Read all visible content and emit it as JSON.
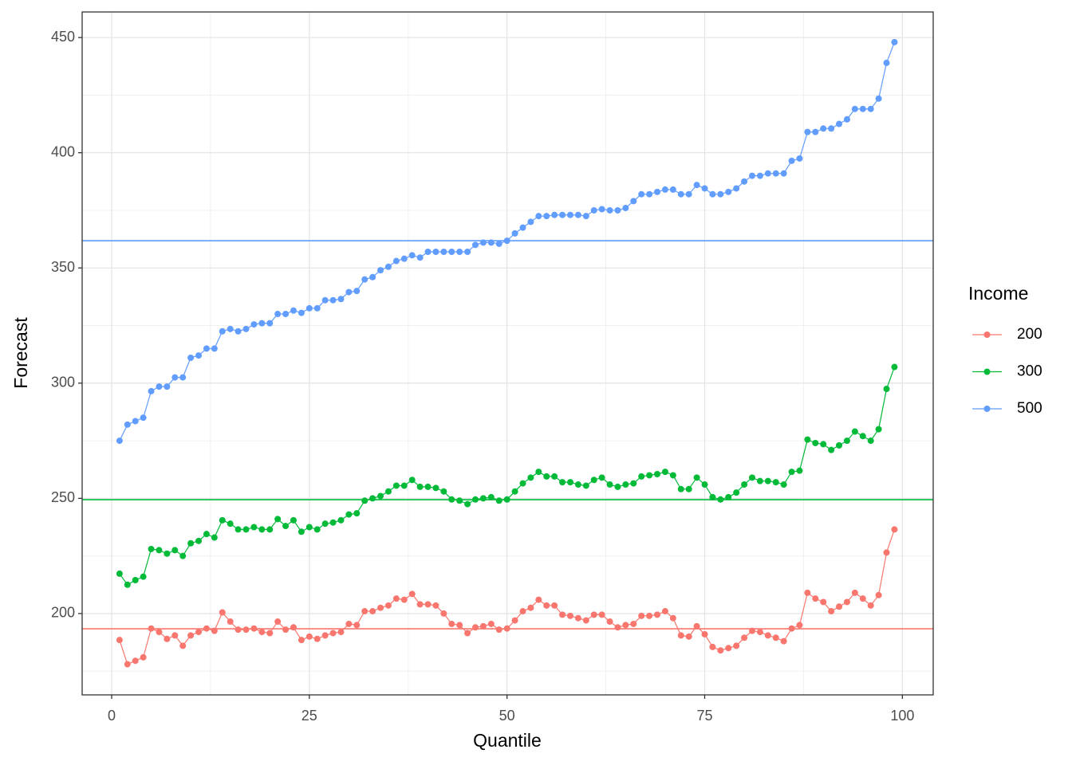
{
  "chart_data": {
    "type": "line",
    "x_label": "Quantile",
    "y_label": "Forecast",
    "x": [
      1,
      2,
      3,
      4,
      5,
      6,
      7,
      8,
      9,
      10,
      11,
      12,
      13,
      14,
      15,
      16,
      17,
      18,
      19,
      20,
      21,
      22,
      23,
      24,
      25,
      26,
      27,
      28,
      29,
      30,
      31,
      32,
      33,
      34,
      35,
      36,
      37,
      38,
      39,
      40,
      41,
      42,
      43,
      44,
      45,
      46,
      47,
      48,
      49,
      50,
      51,
      52,
      53,
      54,
      55,
      56,
      57,
      58,
      59,
      60,
      61,
      62,
      63,
      64,
      65,
      66,
      67,
      68,
      69,
      70,
      71,
      72,
      73,
      74,
      75,
      76,
      77,
      78,
      79,
      80,
      81,
      82,
      83,
      84,
      85,
      86,
      87,
      88,
      89,
      90,
      91,
      92,
      93,
      94,
      95,
      96,
      97,
      98,
      99
    ],
    "xlim": [
      -3.73,
      103.9
    ],
    "xticks": [
      0,
      25,
      50,
      75,
      100
    ],
    "ylim": [
      164.7,
      461.1
    ],
    "yticks": [
      200,
      250,
      300,
      350,
      400,
      450
    ],
    "grid": true,
    "legend_title": "Income",
    "legend_position": "right",
    "series": [
      {
        "name": "200",
        "color": "#F8766D",
        "hline": 193.4,
        "values": [
          188.5,
          178,
          179.5,
          181,
          193.5,
          192,
          189,
          190.5,
          186,
          190.5,
          192,
          193.5,
          192.5,
          200.5,
          196.5,
          193,
          193,
          193.5,
          192,
          191.5,
          196.5,
          193,
          194,
          188.5,
          190,
          189,
          190.5,
          191.5,
          192,
          195.5,
          195,
          201,
          201,
          202.5,
          203.5,
          206.5,
          206,
          208.5,
          204,
          204,
          203.5,
          200,
          195.5,
          195,
          191.5,
          194,
          194.5,
          195.5,
          193,
          193.5,
          197,
          201,
          202.5,
          206,
          203.5,
          203.5,
          199.5,
          199,
          198,
          197,
          199.5,
          199.5,
          196.5,
          194,
          195,
          195.5,
          199,
          199,
          199.5,
          201,
          198,
          190.5,
          190,
          194.5,
          191,
          185.5,
          184,
          185,
          186,
          189.5,
          192.5,
          192,
          190.5,
          189.5,
          188,
          193.5,
          195,
          209,
          206.5,
          205,
          201,
          203,
          205,
          209,
          206.5,
          203.5,
          208,
          226.5,
          236.5
        ]
      },
      {
        "name": "300",
        "color": "#00BA38",
        "hline": 249.4,
        "values": [
          217.3,
          212.5,
          214.5,
          216,
          228,
          227.5,
          226,
          227.5,
          225,
          230.5,
          231.5,
          234.5,
          233,
          240.5,
          239,
          236.5,
          236.5,
          237.5,
          236.5,
          236.5,
          241,
          238,
          240.5,
          235.5,
          237.5,
          236.5,
          239,
          239.5,
          240.5,
          243,
          243.5,
          249,
          250,
          251,
          253,
          255.5,
          255.5,
          258,
          255,
          255,
          254.5,
          253,
          249.5,
          249,
          247.5,
          249.5,
          250,
          250.5,
          249,
          249.5,
          253,
          256.5,
          259,
          261.5,
          259.5,
          259.5,
          257,
          257,
          256,
          255.5,
          258,
          259,
          256,
          255,
          256,
          256.5,
          259.5,
          260,
          260.5,
          261.5,
          260,
          254,
          254,
          259,
          256,
          250.5,
          249.5,
          250.5,
          252.5,
          256,
          259,
          257.5,
          257.5,
          257,
          256,
          261.5,
          262,
          275.5,
          274,
          273.5,
          271,
          273,
          275,
          279,
          277,
          275,
          280,
          297.5,
          307
        ]
      },
      {
        "name": "500",
        "color": "#619CFF",
        "hline": 361.8,
        "values": [
          275,
          282,
          283.5,
          285,
          296.5,
          298.5,
          298.5,
          302.5,
          302.5,
          311,
          312,
          315,
          315,
          322.5,
          323.5,
          322.5,
          323.5,
          325.5,
          326,
          326,
          330,
          330,
          331.5,
          330.5,
          332.5,
          332.5,
          336,
          336,
          336.5,
          339.5,
          340,
          345,
          346,
          349,
          350.5,
          353,
          354,
          355.5,
          354.5,
          357,
          357,
          357,
          357,
          357,
          357,
          360,
          361,
          361,
          360.5,
          361.8,
          365,
          367.5,
          370,
          372.5,
          372.5,
          373,
          373,
          373,
          373,
          372.5,
          375,
          375.5,
          375,
          375,
          376,
          379,
          382,
          382,
          383,
          384,
          384,
          382,
          382,
          386,
          384.5,
          382,
          382,
          383,
          384.5,
          387.5,
          390,
          390,
          391,
          391,
          391,
          396.5,
          397.5,
          409,
          409,
          410.5,
          410.5,
          412.5,
          414.5,
          419,
          419,
          419,
          423.5,
          439,
          448
        ]
      }
    ]
  }
}
